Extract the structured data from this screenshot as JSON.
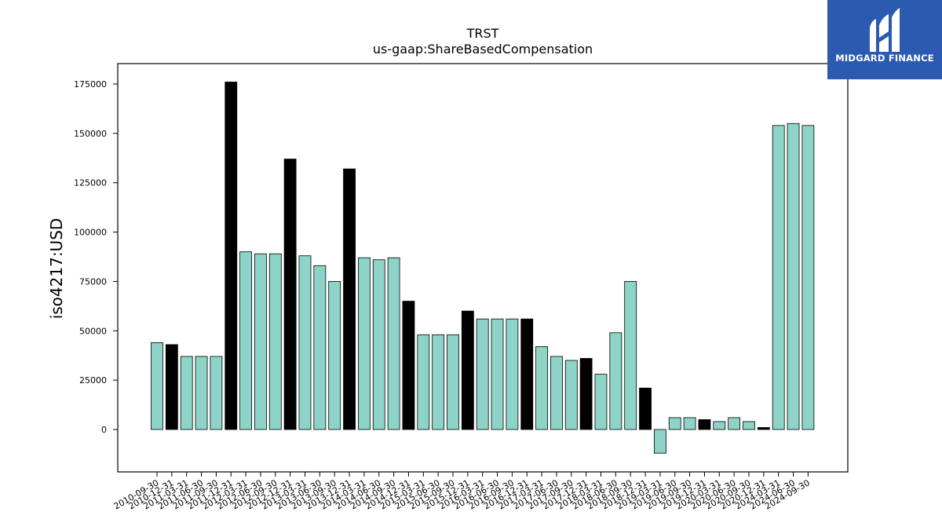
{
  "logo": {
    "text": "MIDGARD FINANCE",
    "icon": "midgard-logo-icon",
    "background": "#2c5ab0"
  },
  "colors": {
    "normal": "#8dd3c7",
    "highlight": "#000000",
    "axis": "#000000"
  },
  "chart_data": {
    "type": "bar",
    "title": "TRST",
    "subtitle": "us-gaap:ShareBasedCompensation",
    "xlabel": "",
    "ylabel": "iso4217:USD",
    "ylim": [
      -12000,
      185000
    ],
    "yticks": [
      0,
      25000,
      50000,
      75000,
      100000,
      125000,
      150000,
      175000
    ],
    "grid": false,
    "categories": [
      "2010-09-30",
      "2010-12-31",
      "2011-03-31",
      "2011-06-30",
      "2011-09-30",
      "2011-12-31",
      "2012-03-31",
      "2012-06-30",
      "2012-09-30",
      "2012-12-31",
      "2013-03-31",
      "2013-06-30",
      "2013-09-30",
      "2013-12-31",
      "2014-03-31",
      "2014-06-30",
      "2014-09-30",
      "2014-12-31",
      "2015-03-31",
      "2015-06-30",
      "2015-09-30",
      "2015-12-31",
      "2016-03-31",
      "2016-06-30",
      "2016-09-30",
      "2016-12-31",
      "2017-03-31",
      "2017-06-30",
      "2017-09-30",
      "2017-12-31",
      "2018-03-31",
      "2018-06-30",
      "2018-09-30",
      "2018-12-31",
      "2019-03-31",
      "2019-06-30",
      "2019-09-30",
      "2019-12-31",
      "2020-03-31",
      "2020-06-30",
      "2020-09-30",
      "2020-12-31",
      "2024-03-31",
      "2024-06-30",
      "2024-09-30"
    ],
    "values": [
      44000,
      43000,
      37000,
      37000,
      37000,
      176000,
      90000,
      89000,
      89000,
      137000,
      88000,
      83000,
      75000,
      132000,
      87000,
      86000,
      87000,
      65000,
      48000,
      48000,
      48000,
      60000,
      56000,
      56000,
      56000,
      56000,
      42000,
      37000,
      35000,
      36000,
      28000,
      49000,
      75000,
      21000,
      -12000,
      6000,
      6000,
      5000,
      4000,
      6000,
      4000,
      1000,
      154000,
      155000,
      154000
    ],
    "highlighted": [
      false,
      true,
      false,
      false,
      false,
      true,
      false,
      false,
      false,
      true,
      false,
      false,
      false,
      true,
      false,
      false,
      false,
      true,
      false,
      false,
      false,
      true,
      false,
      false,
      false,
      true,
      false,
      false,
      false,
      true,
      false,
      false,
      false,
      true,
      false,
      false,
      false,
      true,
      false,
      false,
      false,
      true,
      false,
      false,
      false
    ]
  }
}
